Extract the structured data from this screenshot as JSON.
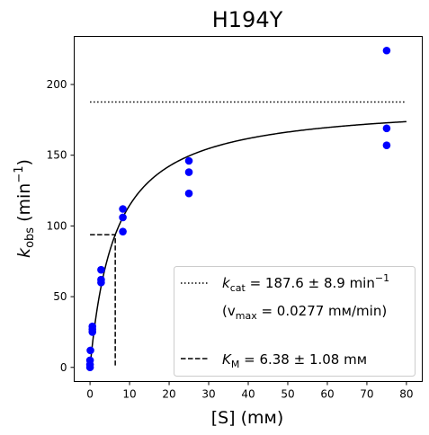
{
  "chart_data": {
    "type": "scatter",
    "title": "H194Y",
    "xlabel": "[S] (mм)",
    "ylabel_main": "k",
    "ylabel_sub": "obs",
    "ylabel_unit": "(min",
    "ylabel_exp": "−1",
    "ylabel_close": ")",
    "xlim": [
      -4,
      84
    ],
    "ylim": [
      -10,
      234
    ],
    "xticks": [
      0,
      10,
      20,
      30,
      40,
      50,
      60,
      70,
      80
    ],
    "yticks": [
      0,
      50,
      100,
      150,
      200
    ],
    "points_color": "#0000ff",
    "points": [
      {
        "x": 0,
        "y": 0
      },
      {
        "x": 0,
        "y": 2
      },
      {
        "x": 0,
        "y": 5
      },
      {
        "x": 0.1,
        "y": 12
      },
      {
        "x": 0.6,
        "y": 25
      },
      {
        "x": 0.6,
        "y": 27
      },
      {
        "x": 0.6,
        "y": 29
      },
      {
        "x": 2.8,
        "y": 60
      },
      {
        "x": 2.8,
        "y": 62
      },
      {
        "x": 2.8,
        "y": 69
      },
      {
        "x": 8.3,
        "y": 96
      },
      {
        "x": 8.3,
        "y": 106
      },
      {
        "x": 8.3,
        "y": 112
      },
      {
        "x": 25,
        "y": 123
      },
      {
        "x": 25,
        "y": 138
      },
      {
        "x": 25,
        "y": 146
      },
      {
        "x": 75,
        "y": 157
      },
      {
        "x": 75,
        "y": 169
      },
      {
        "x": 75,
        "y": 224
      }
    ],
    "fit": {
      "kcat": 187.6,
      "KM": 6.38,
      "x_start": 0,
      "x_end": 80,
      "color": "#000000"
    },
    "kcat_line": {
      "y": 187.6,
      "x_start": 0,
      "x_end": 80
    },
    "km_marker": {
      "x": 6.38,
      "y": 93.8
    },
    "legend": {
      "placement": "lower-right",
      "kcat_main": "k",
      "kcat_sub": "cat",
      "kcat_value": " = 187.6 ± 8.9 min",
      "kcat_exp": "−1",
      "vmax_open": "(v",
      "vmax_sub": "max",
      "vmax_value": " = 0.0277 mм/min)",
      "km_main": "K",
      "km_sub": "M",
      "km_value": " = 6.38 ± 1.08 mм"
    }
  }
}
